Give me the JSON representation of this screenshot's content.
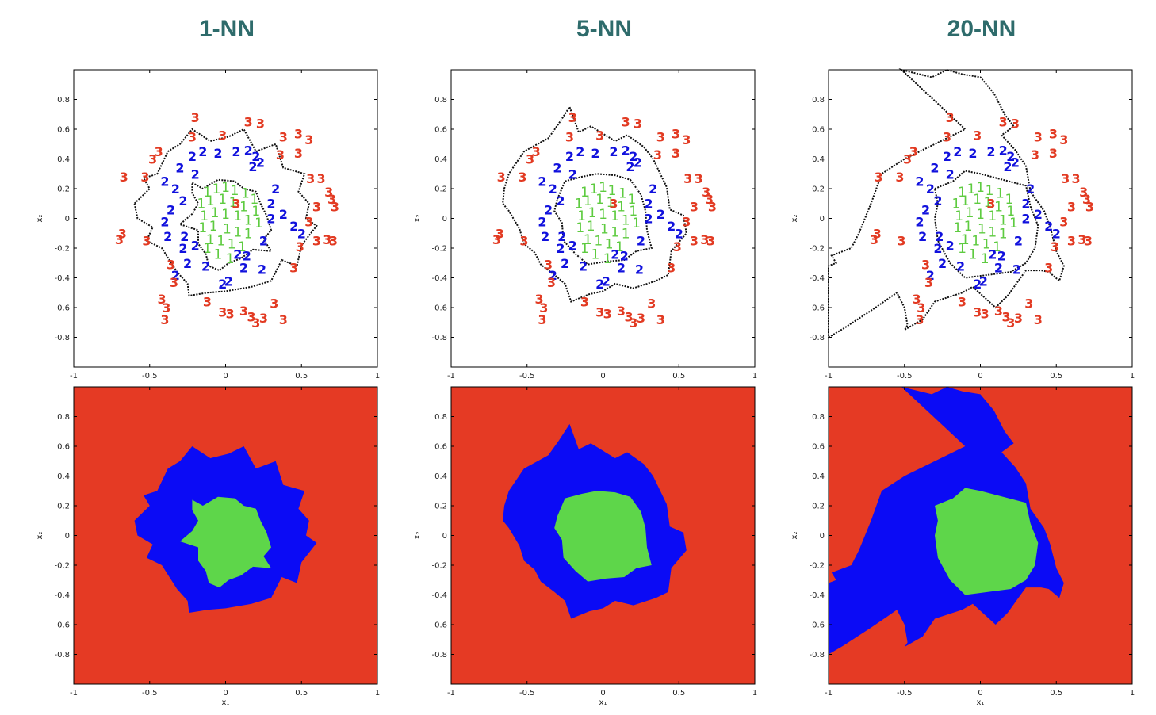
{
  "colors": {
    "class1": "#5ecb40",
    "class2": "#1111dd",
    "class3": "#e23a22",
    "region1": "#5ed64a",
    "region2": "#0b0bf5",
    "region3": "#e53a24",
    "title": "#2e6b6b"
  },
  "chart_data": [
    {
      "type": "scatter",
      "panel": "1-NN samples",
      "title": "1-NN",
      "xlabel": "",
      "ylabel": "x₂",
      "xlim": [
        -1,
        1
      ],
      "ylim": [
        -1,
        1
      ],
      "xticks": [
        "-1",
        "-0.5",
        "0",
        "0.5",
        "1"
      ],
      "yticks": [
        "0.8",
        "0.6",
        "0.4",
        "0.2",
        "0",
        "-0.2",
        "-0.4",
        "-0.6",
        "-0.8"
      ],
      "series": [
        {
          "label_char": "1"
        },
        {
          "label_char": "2"
        },
        {
          "label_char": "3"
        }
      ],
      "boundary": "dotted black"
    },
    {
      "type": "scatter",
      "panel": "5-NN samples",
      "title": "5-NN",
      "xlabel": "",
      "ylabel": "x₂",
      "xlim": [
        -1,
        1
      ],
      "ylim": [
        -1,
        1
      ],
      "xticks": [
        "-1",
        "-0.5",
        "0",
        "0.5",
        "1"
      ],
      "yticks": [
        "0.8",
        "0.6",
        "0.4",
        "0.2",
        "0",
        "-0.2",
        "-0.4",
        "-0.6",
        "-0.8"
      ],
      "series": [
        {
          "label_char": "1"
        },
        {
          "label_char": "2"
        },
        {
          "label_char": "3"
        }
      ],
      "boundary": "dotted black"
    },
    {
      "type": "scatter",
      "panel": "20-NN samples",
      "title": "20-NN",
      "xlabel": "",
      "ylabel": "x₂",
      "xlim": [
        -1,
        1
      ],
      "ylim": [
        -1,
        1
      ],
      "xticks": [
        "-1",
        "-0.5",
        "0",
        "0.5",
        "1"
      ],
      "yticks": [
        "0.8",
        "0.6",
        "0.4",
        "0.2",
        "0",
        "-0.2",
        "-0.4",
        "-0.6",
        "-0.8"
      ],
      "series": [
        {
          "label_char": "1"
        },
        {
          "label_char": "2"
        },
        {
          "label_char": "3"
        }
      ],
      "boundary": "dotted black"
    },
    {
      "type": "heatmap",
      "panel": "1-NN regions",
      "xlabel": "x₁",
      "ylabel": "x₂",
      "xlim": [
        -1,
        1
      ],
      "ylim": [
        -1,
        1
      ],
      "xticks": [
        "-1",
        "-0.5",
        "0",
        "0.5",
        "1"
      ],
      "yticks": [
        "0.8",
        "0.6",
        "0.4",
        "0.2",
        "0",
        "-0.2",
        "-0.4",
        "-0.6",
        "-0.8"
      ],
      "regions": [
        "1",
        "2",
        "3"
      ]
    },
    {
      "type": "heatmap",
      "panel": "5-NN regions",
      "xlabel": "x₁",
      "ylabel": "x₂",
      "xlim": [
        -1,
        1
      ],
      "ylim": [
        -1,
        1
      ],
      "xticks": [
        "-1",
        "-0.5",
        "0",
        "0.5",
        "1"
      ],
      "yticks": [
        "0.8",
        "0.6",
        "0.4",
        "0.2",
        "0",
        "-0.2",
        "-0.4",
        "-0.6",
        "-0.8"
      ],
      "regions": [
        "1",
        "2",
        "3"
      ]
    },
    {
      "type": "heatmap",
      "panel": "20-NN regions",
      "xlabel": "x₁",
      "ylabel": "x₂",
      "xlim": [
        -1,
        1
      ],
      "ylim": [
        -1,
        1
      ],
      "xticks": [
        "-1",
        "-0.5",
        "0",
        "0.5",
        "1"
      ],
      "yticks": [
        "0.8",
        "0.6",
        "0.4",
        "0.2",
        "0",
        "-0.2",
        "-0.4",
        "-0.6",
        "-0.8"
      ],
      "regions": [
        "1",
        "2",
        "3"
      ]
    }
  ],
  "samples": {
    "class1": [
      [
        -0.12,
        0.18
      ],
      [
        -0.06,
        0.2
      ],
      [
        0.0,
        0.21
      ],
      [
        0.06,
        0.19
      ],
      [
        0.13,
        0.17
      ],
      [
        0.19,
        0.13
      ],
      [
        -0.16,
        0.1
      ],
      [
        -0.1,
        0.12
      ],
      [
        -0.02,
        0.13
      ],
      [
        0.05,
        0.11
      ],
      [
        0.12,
        0.08
      ],
      [
        0.2,
        0.05
      ],
      [
        -0.14,
        0.02
      ],
      [
        -0.07,
        0.04
      ],
      [
        0.0,
        0.03
      ],
      [
        0.08,
        0.02
      ],
      [
        0.15,
        -0.01
      ],
      [
        0.22,
        -0.03
      ],
      [
        -0.15,
        -0.06
      ],
      [
        -0.08,
        -0.05
      ],
      [
        0.01,
        -0.07
      ],
      [
        0.08,
        -0.09
      ],
      [
        0.15,
        -0.1
      ],
      [
        -0.1,
        -0.14
      ],
      [
        -0.03,
        -0.15
      ],
      [
        0.04,
        -0.17
      ],
      [
        0.11,
        -0.19
      ],
      [
        -0.05,
        -0.24
      ],
      [
        0.03,
        -0.27
      ],
      [
        -0.12,
        -0.2
      ]
    ],
    "class2": [
      [
        -0.4,
        0.25
      ],
      [
        -0.33,
        0.2
      ],
      [
        -0.3,
        0.34
      ],
      [
        -0.22,
        0.42
      ],
      [
        -0.15,
        0.45
      ],
      [
        -0.05,
        0.44
      ],
      [
        0.07,
        0.45
      ],
      [
        0.15,
        0.46
      ],
      [
        0.2,
        0.42
      ],
      [
        0.23,
        0.38
      ],
      [
        -0.28,
        0.12
      ],
      [
        -0.36,
        0.06
      ],
      [
        -0.4,
        -0.02
      ],
      [
        -0.38,
        -0.12
      ],
      [
        -0.27,
        -0.12
      ],
      [
        -0.28,
        -0.2
      ],
      [
        -0.2,
        -0.18
      ],
      [
        -0.25,
        -0.3
      ],
      [
        -0.13,
        -0.32
      ],
      [
        -0.02,
        -0.44
      ],
      [
        0.02,
        -0.42
      ],
      [
        0.12,
        -0.33
      ],
      [
        0.08,
        -0.24
      ],
      [
        0.14,
        -0.25
      ],
      [
        0.24,
        -0.34
      ],
      [
        0.3,
        0.0
      ],
      [
        0.3,
        0.1
      ],
      [
        0.38,
        0.03
      ],
      [
        0.33,
        0.2
      ],
      [
        0.45,
        -0.05
      ],
      [
        0.5,
        -0.1
      ],
      [
        0.25,
        -0.15
      ],
      [
        -0.33,
        -0.38
      ],
      [
        -0.2,
        0.3
      ],
      [
        0.18,
        0.35
      ]
    ],
    "class3": [
      [
        -0.2,
        0.68
      ],
      [
        -0.02,
        0.56
      ],
      [
        0.15,
        0.65
      ],
      [
        0.23,
        0.64
      ],
      [
        -0.22,
        0.55
      ],
      [
        0.38,
        0.55
      ],
      [
        0.48,
        0.57
      ],
      [
        0.55,
        0.53
      ],
      [
        0.48,
        0.44
      ],
      [
        0.36,
        0.43
      ],
      [
        -0.44,
        0.45
      ],
      [
        -0.48,
        0.4
      ],
      [
        -0.67,
        0.28
      ],
      [
        -0.53,
        0.28
      ],
      [
        0.56,
        0.27
      ],
      [
        0.63,
        0.27
      ],
      [
        0.68,
        0.18
      ],
      [
        0.7,
        0.13
      ],
      [
        0.72,
        0.08
      ],
      [
        0.6,
        0.08
      ],
      [
        0.55,
        -0.02
      ],
      [
        0.67,
        -0.14
      ],
      [
        0.6,
        -0.15
      ],
      [
        0.49,
        -0.19
      ],
      [
        0.71,
        -0.15
      ],
      [
        -0.68,
        -0.1
      ],
      [
        -0.7,
        -0.14
      ],
      [
        -0.52,
        -0.15
      ],
      [
        -0.36,
        -0.31
      ],
      [
        -0.34,
        -0.43
      ],
      [
        -0.42,
        -0.54
      ],
      [
        -0.39,
        -0.6
      ],
      [
        -0.4,
        -0.68
      ],
      [
        -0.12,
        -0.56
      ],
      [
        -0.02,
        -0.63
      ],
      [
        0.03,
        -0.64
      ],
      [
        0.12,
        -0.62
      ],
      [
        0.17,
        -0.66
      ],
      [
        0.2,
        -0.7
      ],
      [
        0.25,
        -0.67
      ],
      [
        0.32,
        -0.57
      ],
      [
        0.38,
        -0.68
      ],
      [
        0.45,
        -0.33
      ],
      [
        0.07,
        0.1
      ]
    ]
  },
  "boundaries": {
    "p0": {
      "outer": [
        [
          -0.6,
          0.1
        ],
        [
          -0.5,
          0.2
        ],
        [
          -0.54,
          0.27
        ],
        [
          -0.45,
          0.3
        ],
        [
          -0.38,
          0.45
        ],
        [
          -0.3,
          0.5
        ],
        [
          -0.22,
          0.6
        ],
        [
          -0.1,
          0.52
        ],
        [
          0.02,
          0.55
        ],
        [
          0.12,
          0.6
        ],
        [
          0.2,
          0.45
        ],
        [
          0.33,
          0.5
        ],
        [
          0.38,
          0.34
        ],
        [
          0.52,
          0.3
        ],
        [
          0.48,
          0.18
        ],
        [
          0.55,
          0.1
        ],
        [
          0.53,
          0.0
        ],
        [
          0.6,
          -0.05
        ],
        [
          0.5,
          -0.18
        ],
        [
          0.47,
          -0.32
        ],
        [
          0.37,
          -0.28
        ],
        [
          0.3,
          -0.42
        ],
        [
          0.17,
          -0.46
        ],
        [
          0.0,
          -0.49
        ],
        [
          -0.12,
          -0.5
        ],
        [
          -0.24,
          -0.52
        ],
        [
          -0.25,
          -0.44
        ],
        [
          -0.32,
          -0.36
        ],
        [
          -0.42,
          -0.2
        ],
        [
          -0.52,
          -0.15
        ],
        [
          -0.48,
          -0.06
        ],
        [
          -0.58,
          0.0
        ]
      ],
      "inner": [
        [
          -0.22,
          0.24
        ],
        [
          -0.15,
          0.2
        ],
        [
          -0.05,
          0.26
        ],
        [
          0.06,
          0.25
        ],
        [
          0.12,
          0.2
        ],
        [
          0.2,
          0.18
        ],
        [
          0.23,
          0.1
        ],
        [
          0.27,
          0.02
        ],
        [
          0.3,
          -0.08
        ],
        [
          0.25,
          -0.14
        ],
        [
          0.3,
          -0.22
        ],
        [
          0.18,
          -0.21
        ],
        [
          0.1,
          -0.27
        ],
        [
          0.02,
          -0.3
        ],
        [
          -0.04,
          -0.35
        ],
        [
          -0.11,
          -0.32
        ],
        [
          -0.13,
          -0.24
        ],
        [
          -0.18,
          -0.17
        ],
        [
          -0.18,
          -0.08
        ],
        [
          -0.3,
          -0.04
        ],
        [
          -0.22,
          0.03
        ],
        [
          -0.18,
          0.1
        ],
        [
          -0.22,
          0.17
        ]
      ]
    },
    "p1": {
      "outer": [
        [
          -0.65,
          0.2
        ],
        [
          -0.62,
          0.3
        ],
        [
          -0.52,
          0.45
        ],
        [
          -0.36,
          0.54
        ],
        [
          -0.29,
          0.64
        ],
        [
          -0.22,
          0.75
        ],
        [
          -0.16,
          0.58
        ],
        [
          -0.08,
          0.62
        ],
        [
          0.08,
          0.52
        ],
        [
          0.16,
          0.56
        ],
        [
          0.27,
          0.48
        ],
        [
          0.33,
          0.4
        ],
        [
          0.42,
          0.21
        ],
        [
          0.44,
          0.06
        ],
        [
          0.53,
          0.02
        ],
        [
          0.55,
          -0.1
        ],
        [
          0.45,
          -0.22
        ],
        [
          0.43,
          -0.38
        ],
        [
          0.35,
          -0.42
        ],
        [
          0.2,
          -0.47
        ],
        [
          0.08,
          -0.44
        ],
        [
          0.0,
          -0.49
        ],
        [
          -0.09,
          -0.51
        ],
        [
          -0.21,
          -0.56
        ],
        [
          -0.25,
          -0.44
        ],
        [
          -0.32,
          -0.38
        ],
        [
          -0.41,
          -0.31
        ],
        [
          -0.45,
          -0.23
        ],
        [
          -0.52,
          -0.17
        ],
        [
          -0.55,
          -0.07
        ],
        [
          -0.62,
          0.05
        ],
        [
          -0.66,
          0.1
        ]
      ],
      "inner": [
        [
          -0.3,
          0.13
        ],
        [
          -0.25,
          0.25
        ],
        [
          -0.14,
          0.28
        ],
        [
          -0.04,
          0.3
        ],
        [
          0.08,
          0.29
        ],
        [
          0.18,
          0.26
        ],
        [
          0.25,
          0.16
        ],
        [
          0.28,
          0.05
        ],
        [
          0.29,
          -0.08
        ],
        [
          0.32,
          -0.2
        ],
        [
          0.22,
          -0.22
        ],
        [
          0.14,
          -0.28
        ],
        [
          0.02,
          -0.29
        ],
        [
          -0.1,
          -0.31
        ],
        [
          -0.18,
          -0.24
        ],
        [
          -0.26,
          -0.15
        ],
        [
          -0.27,
          -0.03
        ],
        [
          -0.32,
          0.05
        ]
      ]
    },
    "p2": {
      "outer": [
        [
          -1.0,
          -0.8
        ],
        [
          -0.9,
          -0.74
        ],
        [
          -0.78,
          -0.66
        ],
        [
          -0.72,
          -0.62
        ],
        [
          -0.62,
          -0.55
        ],
        [
          -0.55,
          -0.5
        ],
        [
          -0.5,
          -0.6
        ],
        [
          -0.48,
          -0.72
        ],
        [
          -0.5,
          -0.75
        ],
        [
          -0.38,
          -0.68
        ],
        [
          -0.3,
          -0.56
        ],
        [
          -0.18,
          -0.52
        ],
        [
          -0.12,
          -0.5
        ],
        [
          -0.05,
          -0.46
        ],
        [
          0.1,
          -0.6
        ],
        [
          0.18,
          -0.52
        ],
        [
          0.25,
          -0.42
        ],
        [
          0.3,
          -0.35
        ],
        [
          0.4,
          -0.35
        ],
        [
          0.45,
          -0.36
        ],
        [
          0.52,
          -0.42
        ],
        [
          0.55,
          -0.32
        ],
        [
          0.5,
          -0.22
        ],
        [
          0.46,
          -0.06
        ],
        [
          0.42,
          0.05
        ],
        [
          0.33,
          0.18
        ],
        [
          0.3,
          0.35
        ],
        [
          0.23,
          0.46
        ],
        [
          0.14,
          0.56
        ],
        [
          0.22,
          0.62
        ],
        [
          0.16,
          0.7
        ],
        [
          0.09,
          0.84
        ],
        [
          0.0,
          0.95
        ],
        [
          -0.12,
          0.97
        ],
        [
          -0.22,
          1.0
        ],
        [
          -0.32,
          0.95
        ],
        [
          -0.52,
          1.0
        ],
        [
          -0.1,
          0.6
        ],
        [
          -0.5,
          0.4
        ],
        [
          -0.65,
          0.3
        ],
        [
          -0.72,
          0.1
        ],
        [
          -0.8,
          -0.1
        ],
        [
          -0.85,
          -0.2
        ],
        [
          -0.98,
          -0.25
        ],
        [
          -0.95,
          -0.3
        ],
        [
          -1.0,
          -0.32
        ]
      ],
      "inner": [
        [
          -0.3,
          0.2
        ],
        [
          -0.18,
          0.25
        ],
        [
          -0.1,
          0.32
        ],
        [
          0.0,
          0.3
        ],
        [
          0.15,
          0.26
        ],
        [
          0.3,
          0.22
        ],
        [
          0.33,
          0.08
        ],
        [
          0.38,
          -0.05
        ],
        [
          0.36,
          -0.2
        ],
        [
          0.3,
          -0.3
        ],
        [
          0.2,
          -0.36
        ],
        [
          0.05,
          -0.38
        ],
        [
          -0.1,
          -0.4
        ],
        [
          -0.2,
          -0.3
        ],
        [
          -0.28,
          -0.15
        ],
        [
          -0.3,
          0.0
        ],
        [
          -0.28,
          0.1
        ]
      ]
    }
  }
}
